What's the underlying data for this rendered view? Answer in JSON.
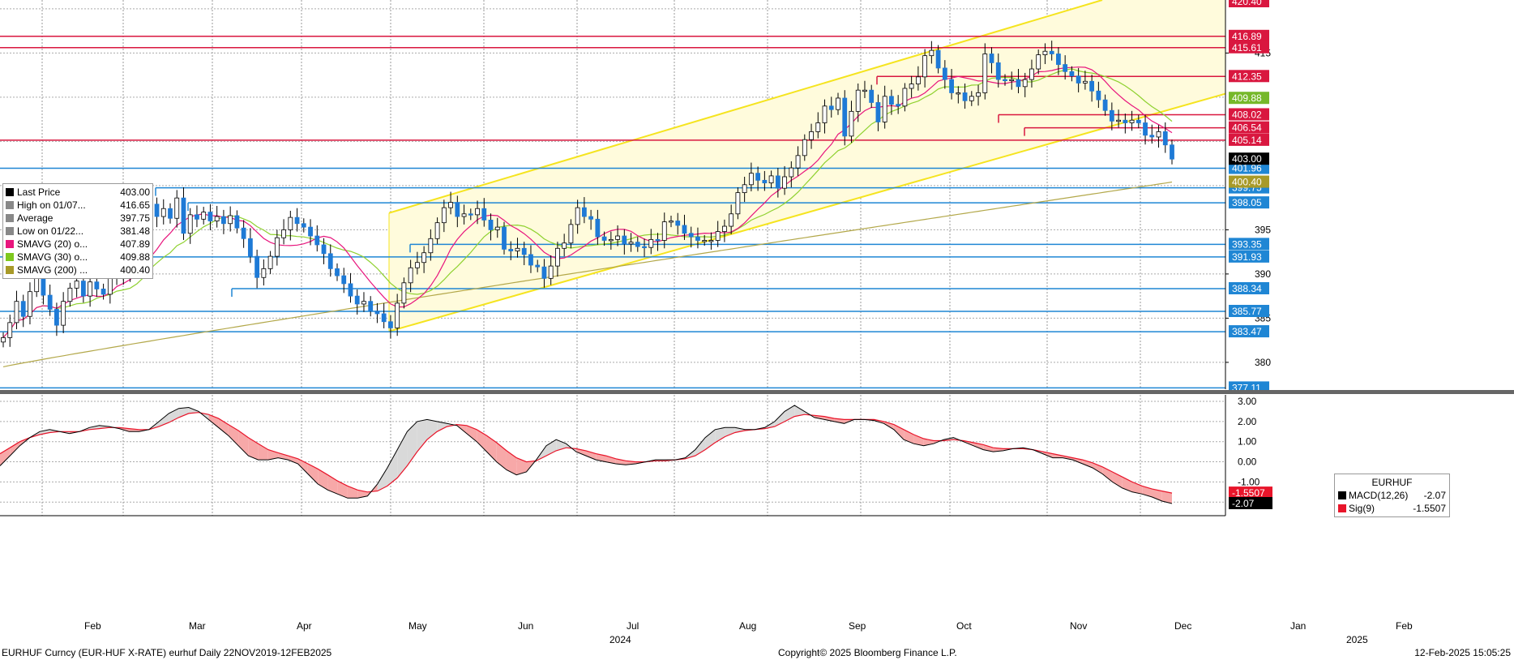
{
  "chart_data": [
    {
      "type": "candlestick",
      "title": "",
      "ticker": "EURHUF",
      "ylim": [
        375.5,
        421
      ],
      "y_ticks": [
        380,
        385,
        390,
        395,
        415
      ],
      "x_month_labels": [
        "Feb",
        "Mar",
        "Apr",
        "May",
        "Jun",
        "Jul",
        "Aug",
        "Sep",
        "Oct",
        "Nov",
        "Dec",
        "Jan",
        "Feb"
      ],
      "x_year_labels": [
        "2024",
        "2025"
      ],
      "legend": [
        {
          "name": "Last Price",
          "value": "403.00",
          "color": "#000000"
        },
        {
          "name": "High on 01/07...",
          "value": "416.65",
          "color": "#888888"
        },
        {
          "name": "Average",
          "value": "397.75",
          "color": "#888888"
        },
        {
          "name": "Low on 01/22...",
          "value": "381.48",
          "color": "#888888"
        },
        {
          "name": "SMAVG (20)  o...",
          "value": "407.89",
          "color": "#e8157d"
        },
        {
          "name": "SMAVG (30)  o...",
          "value": "409.88",
          "color": "#7ec81e"
        },
        {
          "name": "SMAVG (200) ...",
          "value": "400.40",
          "color": "#a89a28"
        }
      ],
      "horizontal_levels_red": [
        "416.89",
        "415.61",
        "412.35",
        "408.02",
        "406.54",
        "405.14"
      ],
      "horizontal_levels_blue": [
        "401.96",
        "399.75",
        "398.05",
        "393.35",
        "391.93",
        "388.34",
        "385.77",
        "383.47",
        "377.11"
      ],
      "axis_value_tags": [
        {
          "label": "420.40",
          "color": "#d9173f"
        },
        {
          "label": "409.88",
          "color": "#76b82a"
        },
        {
          "label": "403.00",
          "color": "#000000"
        },
        {
          "label": "400.40",
          "color": "#a89a28"
        }
      ],
      "close_series": [
        382.8,
        384.5,
        386.9,
        385.2,
        388.0,
        389.8,
        387.6,
        386.0,
        384.2,
        386.9,
        388.4,
        389.2,
        387.5,
        389.1,
        388.3,
        387.7,
        389.5,
        390.6,
        390.0,
        392.5,
        394.4,
        395.9,
        397.9,
        396.5,
        397.4,
        396.3,
        398.6,
        394.6,
        396.7,
        396.2,
        397.0,
        396.0,
        396.5,
        395.7,
        396.6,
        395.2,
        394.0,
        392.0,
        389.6,
        390.6,
        392.0,
        394.1,
        395.0,
        396.4,
        395.7,
        395.3,
        394.3,
        393.3,
        392.3,
        390.6,
        389.8,
        388.9,
        387.5,
        386.6,
        386.9,
        385.8,
        385.5,
        384.6,
        383.9,
        386.7,
        389.0,
        390.7,
        391.3,
        392.4,
        394.0,
        395.8,
        397.5,
        398.1,
        396.5,
        396.8,
        396.7,
        397.4,
        396.1,
        395.0,
        395.3,
        392.8,
        392.6,
        392.9,
        392.2,
        391.0,
        390.8,
        389.5,
        390.9,
        392.9,
        393.5,
        395.6,
        397.5,
        396.5,
        396.2,
        394.2,
        393.8,
        393.9,
        394.3,
        393.4,
        393.6,
        393.1,
        393.0,
        393.9,
        393.8,
        395.9,
        396.0,
        395.5,
        394.6,
        394.2,
        393.8,
        393.8,
        393.8,
        394.8,
        395.4,
        396.8,
        399.2,
        400.1,
        401.4,
        400.6,
        400.3,
        401.1,
        399.7,
        401.0,
        402.0,
        403.4,
        405.2,
        406.1,
        407.1,
        409.0,
        408.6,
        409.9,
        405.6,
        408.4,
        410.8,
        410.8,
        409.4,
        407.2,
        410.1,
        409.2,
        409.0,
        411.0,
        411.5,
        412.3,
        414.7,
        415.3,
        413.3,
        412.0,
        410.5,
        410.5,
        409.6,
        410.1,
        410.5,
        414.9,
        413.9,
        412.0,
        411.9,
        412.0,
        411.2,
        412.0,
        413.2,
        414.8,
        415.2,
        414.9,
        413.7,
        412.9,
        412.4,
        411.6,
        411.8,
        410.7,
        409.7,
        408.5,
        407.3,
        407.4,
        407.1,
        407.4,
        407.1,
        405.7,
        405.5,
        406.1,
        404.6,
        403.0
      ],
      "notes": "Daily candles; light-yellow shaded upward channel; SMAVG lines overlaid"
    },
    {
      "type": "line",
      "title": "EURHUF",
      "y_ticks": [
        "3.00",
        "2.00",
        "1.00",
        "0.00",
        "-1.00"
      ],
      "series": [
        {
          "name": "MACD(12,26)",
          "value": "-2.07",
          "color": "#000000"
        },
        {
          "name": "Sig(9)",
          "value": "-1.5507",
          "color": "#e8152a"
        }
      ],
      "axis_value_tags": [
        {
          "label": "-1.5507",
          "color": "#e8152a"
        },
        {
          "label": "-2.07",
          "color": "#000000"
        }
      ],
      "macd_series": [
        -0.2,
        0.3,
        0.8,
        1.2,
        1.5,
        1.6,
        1.5,
        1.4,
        1.5,
        1.7,
        1.8,
        1.75,
        1.65,
        1.5,
        1.5,
        1.6,
        2.0,
        2.4,
        2.65,
        2.7,
        2.5,
        2.1,
        1.7,
        1.3,
        0.8,
        0.3,
        0.1,
        0.1,
        0.2,
        0.1,
        -0.1,
        -0.6,
        -1.1,
        -1.4,
        -1.6,
        -1.8,
        -1.8,
        -1.7,
        -1.1,
        -0.3,
        0.6,
        1.5,
        2.0,
        2.1,
        2.0,
        1.9,
        1.8,
        1.4,
        1.0,
        0.5,
        0.0,
        -0.4,
        -0.65,
        -0.5,
        0.1,
        0.8,
        1.1,
        0.9,
        0.5,
        0.3,
        0.1,
        0.0,
        -0.1,
        -0.15,
        -0.1,
        0.0,
        0.1,
        0.1,
        0.1,
        0.2,
        0.6,
        1.2,
        1.6,
        1.7,
        1.7,
        1.6,
        1.6,
        1.7,
        2.0,
        2.5,
        2.8,
        2.5,
        2.2,
        2.1,
        2.0,
        1.9,
        2.1,
        2.1,
        2.05,
        1.9,
        1.6,
        1.1,
        0.9,
        0.8,
        0.9,
        1.1,
        1.2,
        1.0,
        0.8,
        0.6,
        0.5,
        0.55,
        0.65,
        0.7,
        0.6,
        0.4,
        0.2,
        0.2,
        0.1,
        -0.1,
        -0.3,
        -0.6,
        -1.0,
        -1.3,
        -1.5,
        -1.6,
        -1.75,
        -1.95,
        -2.07
      ],
      "signal_series": [
        0.4,
        0.7,
        1.0,
        1.2,
        1.35,
        1.45,
        1.5,
        1.5,
        1.5,
        1.6,
        1.65,
        1.7,
        1.7,
        1.65,
        1.6,
        1.6,
        1.75,
        1.95,
        2.2,
        2.4,
        2.45,
        2.35,
        2.15,
        1.85,
        1.55,
        1.2,
        0.9,
        0.6,
        0.45,
        0.3,
        0.15,
        -0.1,
        -0.35,
        -0.65,
        -0.95,
        -1.2,
        -1.4,
        -1.5,
        -1.45,
        -1.2,
        -0.8,
        -0.2,
        0.5,
        1.1,
        1.5,
        1.75,
        1.85,
        1.8,
        1.6,
        1.3,
        0.95,
        0.55,
        0.2,
        0.0,
        0.05,
        0.3,
        0.55,
        0.7,
        0.65,
        0.55,
        0.4,
        0.3,
        0.15,
        0.05,
        0.0,
        0.0,
        0.05,
        0.05,
        0.1,
        0.15,
        0.3,
        0.6,
        0.95,
        1.25,
        1.45,
        1.55,
        1.6,
        1.65,
        1.75,
        2.0,
        2.25,
        2.35,
        2.3,
        2.25,
        2.15,
        2.1,
        2.1,
        2.1,
        2.1,
        2.0,
        1.85,
        1.6,
        1.35,
        1.15,
        1.05,
        1.05,
        1.1,
        1.05,
        0.95,
        0.85,
        0.7,
        0.65,
        0.65,
        0.65,
        0.6,
        0.5,
        0.4,
        0.3,
        0.2,
        0.1,
        -0.05,
        -0.25,
        -0.5,
        -0.75,
        -1.0,
        -1.2,
        -1.35,
        -1.45,
        -1.5507
      ]
    }
  ],
  "footer": {
    "left": "EURHUF Curncy (EUR-HUF X-RATE) eurhuf  Daily 22NOV2019-12FEB2025",
    "center": "Copyright© 2025 Bloomberg Finance L.P.",
    "right": "12-Feb-2025 15:05:25"
  },
  "macd_legend_title": "EURHUF",
  "colors": {
    "up": "#1e7ad6",
    "down": "#1e7ad6",
    "channel_fill": "#fffbdc",
    "channel_line": "#f5e41f",
    "red_level": "#d9173f",
    "blue_level": "#1f86d4"
  }
}
